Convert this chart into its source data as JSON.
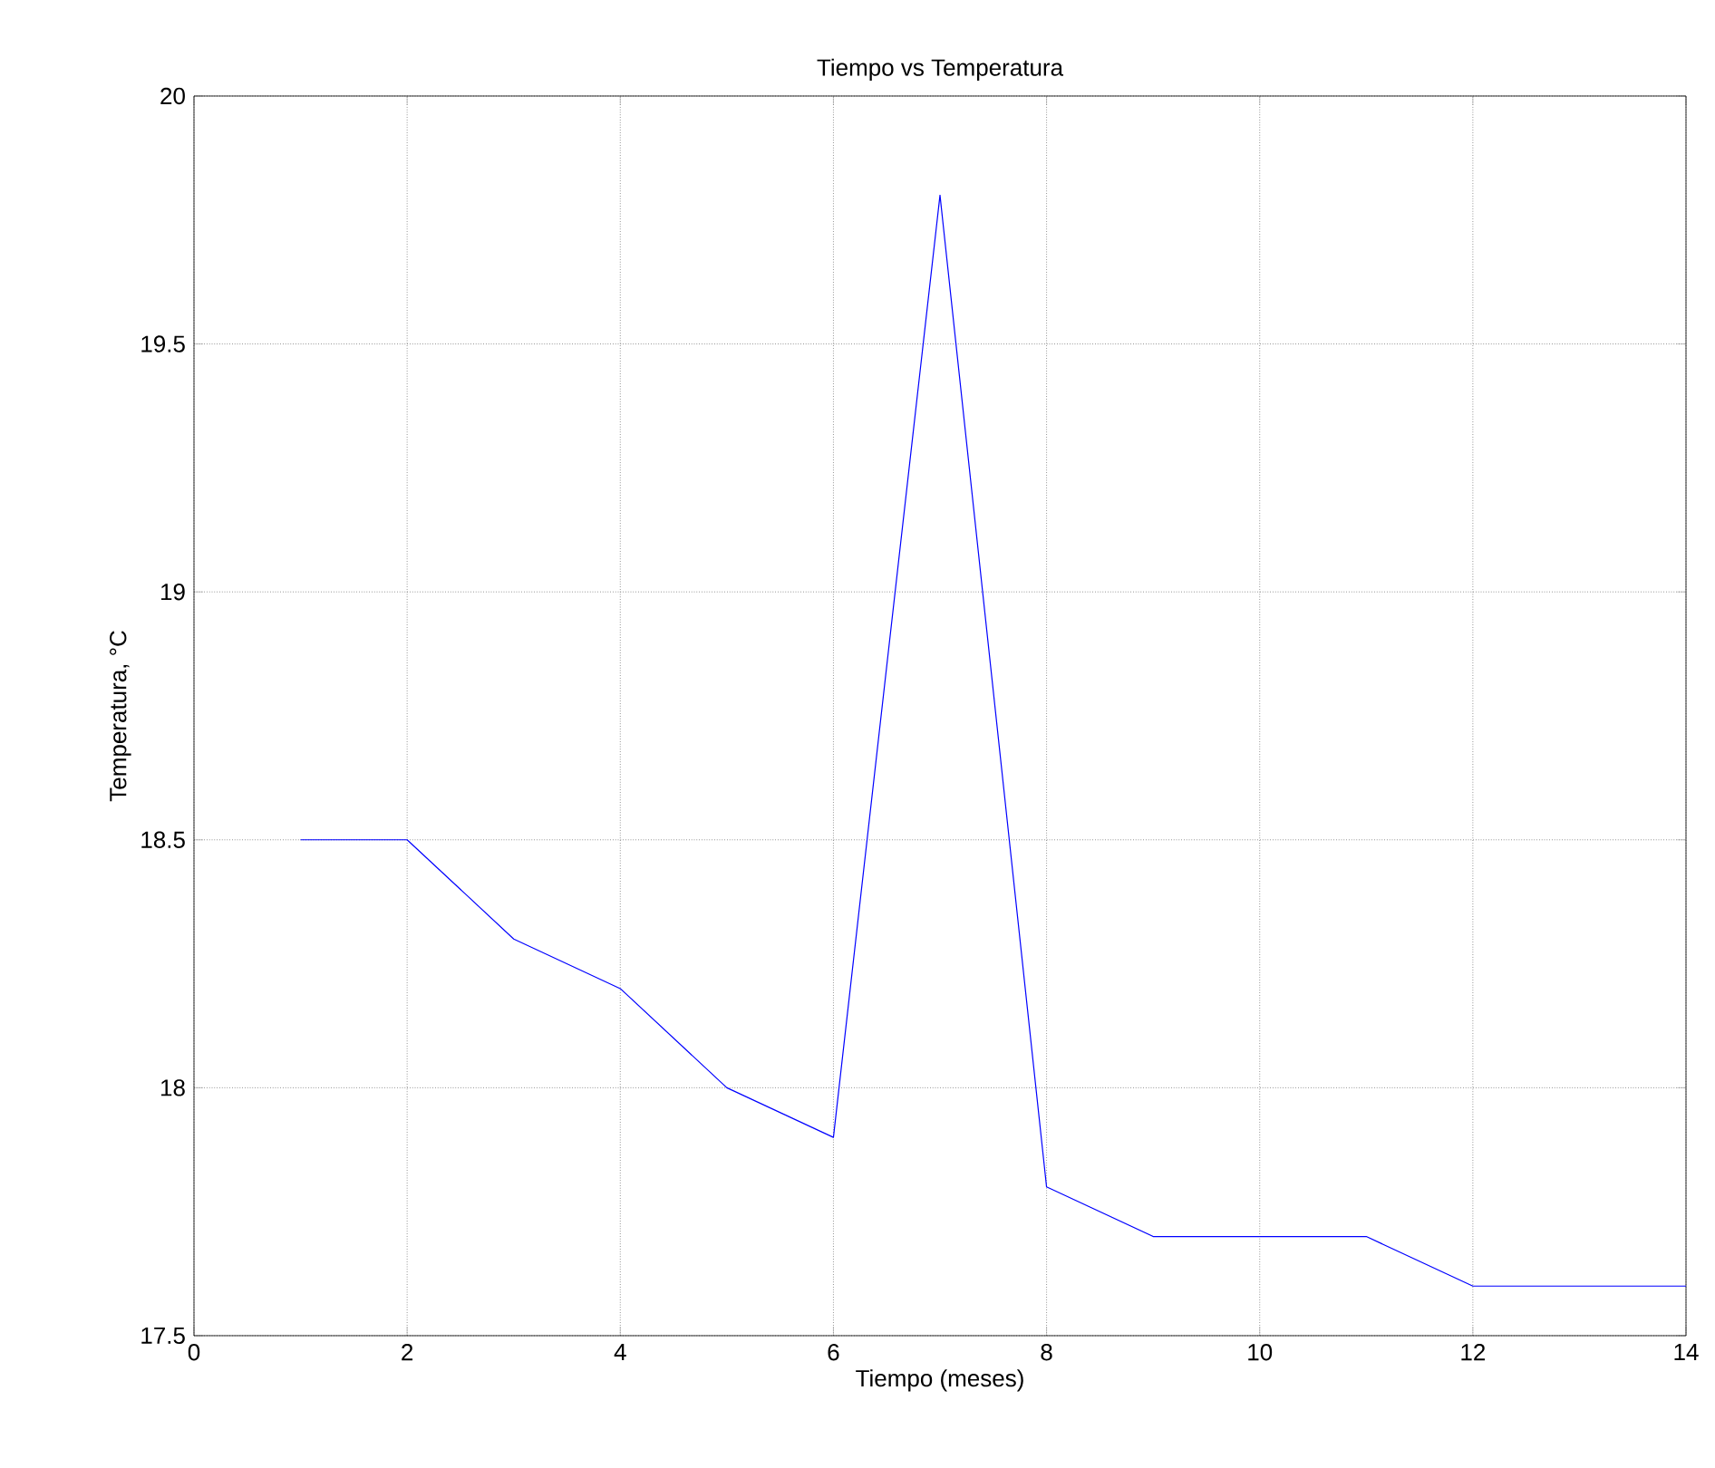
{
  "chart_data": {
    "type": "line",
    "title": "Tiempo vs Temperatura",
    "xlabel": "Tiempo (meses)",
    "ylabel": "Temperatura, °C",
    "x": [
      1,
      2,
      3,
      4,
      5,
      6,
      7,
      8,
      9,
      10,
      11,
      12,
      13,
      14
    ],
    "series": [
      {
        "color": "#0000ff",
        "values": [
          18.5,
          18.5,
          18.3,
          18.2,
          18.0,
          17.9,
          19.8,
          17.8,
          17.7,
          17.7,
          17.7,
          17.6,
          17.6,
          17.6
        ]
      }
    ],
    "xlim": [
      0,
      14
    ],
    "ylim": [
      17.5,
      20
    ],
    "xticks": [
      0,
      2,
      4,
      6,
      8,
      10,
      12,
      14
    ],
    "yticks": [
      17.5,
      18,
      18.5,
      19,
      19.5,
      20
    ],
    "grid": true,
    "marker": "none",
    "line_style": "solid"
  }
}
